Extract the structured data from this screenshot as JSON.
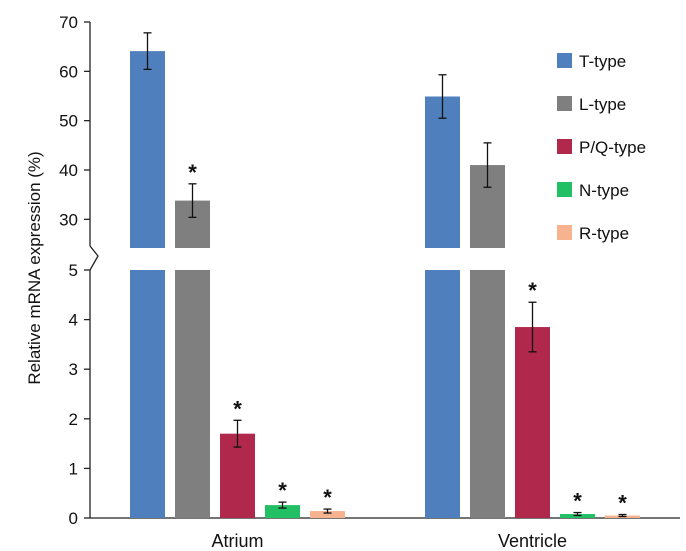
{
  "chart_data": {
    "type": "bar",
    "ylabel": "Relative mRNA expression (%)",
    "categories": [
      "Atrium",
      "Ventricle"
    ],
    "axis_break": {
      "lower": [
        0,
        5
      ],
      "upper": [
        25,
        70
      ]
    },
    "lower_ticks": [
      "0",
      "1",
      "2",
      "3",
      "4",
      "5"
    ],
    "upper_ticks": [
      "30",
      "40",
      "50",
      "60",
      "70"
    ],
    "significance_marker": "*",
    "legend_position": "right",
    "series": [
      {
        "name": "T-type",
        "color": "#4f80bd",
        "values": [
          64.1,
          54.9
        ],
        "errors": [
          3.7,
          4.4
        ],
        "significant": [
          false,
          false
        ]
      },
      {
        "name": "L-type",
        "color": "#7f7f7f",
        "values": [
          33.8,
          41.0
        ],
        "errors": [
          3.4,
          4.5
        ],
        "significant": [
          true,
          false
        ]
      },
      {
        "name": "P/Q-type",
        "color": "#b1284d",
        "values": [
          1.7,
          3.85
        ],
        "errors": [
          0.27,
          0.5
        ],
        "significant": [
          true,
          true
        ]
      },
      {
        "name": "N-type",
        "color": "#21c065",
        "values": [
          0.26,
          0.08
        ],
        "errors": [
          0.06,
          0.03
        ],
        "significant": [
          true,
          true
        ]
      },
      {
        "name": "R-type",
        "color": "#f7b390",
        "values": [
          0.14,
          0.05
        ],
        "errors": [
          0.04,
          0.02
        ],
        "significant": [
          true,
          true
        ]
      }
    ]
  }
}
